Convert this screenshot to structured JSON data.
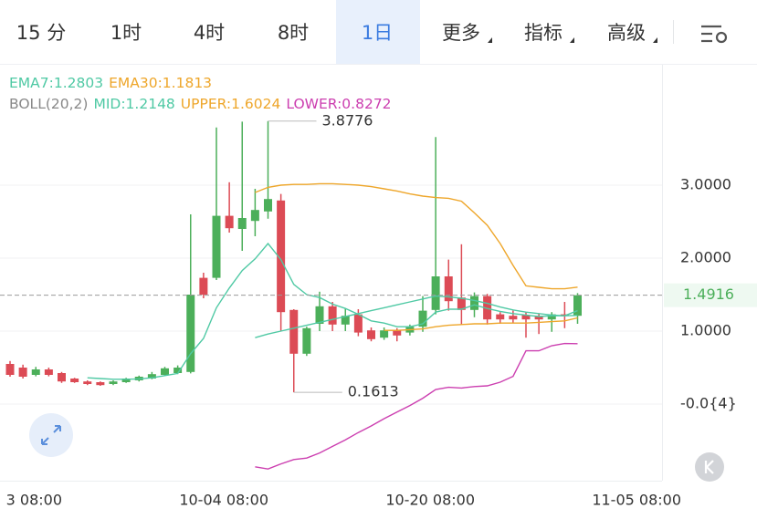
{
  "tabs": [
    "15 分",
    "1时",
    "4时",
    "8时",
    "1日",
    "更多",
    "指标",
    "高级"
  ],
  "active_tab": "1日",
  "chart_data": {
    "type": "candlestick",
    "x": [
      "09-18 08:00",
      "09-19 08:00",
      "09-20 08:00",
      "09-21 08:00",
      "09-22 08:00",
      "09-23 08:00",
      "09-24 08:00",
      "09-25 08:00",
      "09-26 08:00",
      "09-27 08:00",
      "09-28 08:00",
      "09-29 08:00",
      "09-30 08:00",
      "10-01 08:00",
      "10-02 08:00",
      "10-03 08:00",
      "10-04 08:00",
      "10-05 08:00",
      "10-06 08:00",
      "10-07 08:00",
      "10-08 08:00",
      "10-09 08:00",
      "10-10 08:00",
      "10-11 08:00",
      "10-12 08:00",
      "10-13 08:00",
      "10-14 08:00",
      "10-15 08:00",
      "10-16 08:00",
      "10-17 08:00",
      "10-18 08:00",
      "10-19 08:00",
      "10-20 08:00",
      "10-21 08:00",
      "10-22 08:00",
      "10-23 08:00",
      "10-24 08:00",
      "10-25 08:00",
      "10-26 08:00",
      "10-27 08:00",
      "10-28 08:00",
      "10-29 08:00",
      "10-30 08:00",
      "10-31 08:00",
      "11-01 08:00"
    ],
    "open": [
      0.55,
      0.5,
      0.4,
      0.475,
      0.425,
      0.35,
      0.31,
      0.3,
      0.275,
      0.3,
      0.325,
      0.35,
      0.4,
      0.425,
      0.44,
      1.73,
      1.73,
      2.58,
      2.4,
      2.51,
      2.64,
      2.79,
      1.29,
      0.69,
      1.1,
      1.34,
      1.09,
      1.23,
      1.01,
      0.91,
      1.01,
      0.98,
      1.06,
      1.29,
      1.75,
      1.46,
      1.29,
      1.48,
      1.23,
      1.21,
      1.22,
      1.2,
      1.16,
      1.23,
      1.21
    ],
    "high": [
      0.59,
      0.54,
      0.51,
      0.5,
      0.44,
      0.36,
      0.325,
      0.31,
      0.325,
      0.36,
      0.39,
      0.44,
      0.51,
      0.53,
      2.6,
      1.8,
      3.79,
      3.04,
      3.87,
      2.95,
      3.8776,
      2.88,
      1.3,
      1.06,
      1.54,
      1.4,
      1.31,
      1.3,
      1.05,
      1.05,
      1.04,
      1.09,
      1.48,
      3.66,
      1.98,
      2.19,
      1.53,
      1.51,
      1.26,
      1.28,
      1.26,
      1.24,
      1.26,
      1.4,
      1.52
    ],
    "low": [
      0.375,
      0.35,
      0.38,
      0.38,
      0.29,
      0.29,
      0.26,
      0.25,
      0.26,
      0.29,
      0.31,
      0.34,
      0.39,
      0.41,
      0.42,
      1.45,
      1.7,
      2.35,
      2.1,
      2.3,
      2.54,
      1.0,
      0.1613,
      0.66,
      1.0,
      1.0,
      1.0,
      0.93,
      0.86,
      0.88,
      0.86,
      0.94,
      0.99,
      1.23,
      1.28,
      1.09,
      1.19,
      1.09,
      1.1,
      1.11,
      0.91,
      0.96,
      0.99,
      1.04,
      1.1
    ],
    "close": [
      0.4,
      0.375,
      0.475,
      0.4,
      0.31,
      0.3,
      0.275,
      0.26,
      0.31,
      0.35,
      0.375,
      0.41,
      0.49,
      0.5,
      1.5,
      1.5,
      2.58,
      2.41,
      2.55,
      2.66,
      2.81,
      1.26,
      0.69,
      1.04,
      1.34,
      1.09,
      1.21,
      0.98,
      0.89,
      1.01,
      0.94,
      1.06,
      1.28,
      1.75,
      1.41,
      1.29,
      1.48,
      1.16,
      1.16,
      1.16,
      1.16,
      1.16,
      1.23,
      1.21,
      1.4916
    ],
    "up_color": "#4caf5a",
    "down_color": "#dc4b55",
    "series": [
      {
        "name": "EMA7",
        "label": "EMA7:1.2803",
        "color": "#4fc9a4",
        "values": [
          null,
          null,
          null,
          null,
          null,
          null,
          0.36,
          0.35,
          0.34,
          0.34,
          0.345,
          0.36,
          0.39,
          0.42,
          0.69,
          0.9,
          1.32,
          1.59,
          1.83,
          1.99,
          2.2,
          1.98,
          1.64,
          1.5,
          1.46,
          1.37,
          1.31,
          1.23,
          1.14,
          1.11,
          1.06,
          1.06,
          1.1,
          1.26,
          1.3,
          1.3,
          1.36,
          1.31,
          1.27,
          1.24,
          1.22,
          1.2,
          1.21,
          1.21,
          1.2803
        ]
      },
      {
        "name": "EMA30",
        "label": "EMA30:1.1813",
        "color": "#eea62a",
        "values": [
          null,
          null,
          null,
          null,
          null,
          null,
          null,
          null,
          null,
          null,
          null,
          null,
          null,
          null,
          null,
          null,
          null,
          null,
          null,
          null,
          null,
          null,
          null,
          null,
          null,
          null,
          null,
          null,
          null,
          1.01,
          1.01,
          1.02,
          1.03,
          1.06,
          1.08,
          1.09,
          1.1,
          1.1,
          1.11,
          1.11,
          1.11,
          1.12,
          1.13,
          1.14,
          1.1813
        ]
      },
      {
        "name": "MID",
        "label": "MID:1.2148",
        "color": "#4fc9a4",
        "values": [
          null,
          null,
          null,
          null,
          null,
          null,
          null,
          null,
          null,
          null,
          null,
          null,
          null,
          null,
          null,
          null,
          null,
          null,
          null,
          0.91,
          0.96,
          1.0,
          1.04,
          1.08,
          1.12,
          1.16,
          1.2,
          1.24,
          1.28,
          1.32,
          1.36,
          1.4,
          1.44,
          1.48,
          1.47,
          1.45,
          1.42,
          1.38,
          1.33,
          1.29,
          1.26,
          1.24,
          1.22,
          1.21,
          1.2148
        ]
      },
      {
        "name": "UPPER",
        "label": "UPPER:1.6024",
        "color": "#eea62a",
        "values": [
          null,
          null,
          null,
          null,
          null,
          null,
          null,
          null,
          null,
          null,
          null,
          null,
          null,
          null,
          null,
          null,
          null,
          null,
          null,
          2.9,
          2.97,
          3.0,
          3.01,
          3.01,
          3.02,
          3.02,
          3.01,
          3.0,
          2.98,
          2.95,
          2.92,
          2.88,
          2.85,
          2.83,
          2.82,
          2.78,
          2.62,
          2.45,
          2.2,
          1.9,
          1.62,
          1.6,
          1.58,
          1.58,
          1.6024
        ]
      },
      {
        "name": "LOWER",
        "label": "LOWER:0.8272",
        "color": "#cc3fb0",
        "values": [
          null,
          null,
          null,
          null,
          null,
          null,
          null,
          null,
          null,
          null,
          null,
          null,
          null,
          null,
          null,
          null,
          null,
          null,
          null,
          -0.86,
          -0.89,
          -0.82,
          -0.76,
          -0.74,
          -0.67,
          -0.58,
          -0.49,
          -0.39,
          -0.3,
          -0.2,
          -0.11,
          -0.02,
          0.08,
          0.2,
          0.23,
          0.22,
          0.24,
          0.25,
          0.3,
          0.38,
          0.73,
          0.73,
          0.8,
          0.83,
          0.8272
        ]
      }
    ],
    "boll_label": "BOLL(20,2)",
    "ylim": [
      -1.05,
      4.6
    ],
    "yticks": [
      {
        "value": 0,
        "label": "-0.0{4}"
      },
      {
        "value": 1,
        "label": "1.0000"
      },
      {
        "value": 2,
        "label": "2.0000"
      },
      {
        "value": 3,
        "label": "3.0000"
      }
    ],
    "xticks": [
      {
        "value": "09-18 08:00",
        "label": "3 08:00"
      },
      "10-04 08:00",
      "10-20 08:00",
      "11-05 08:00"
    ],
    "grid": true,
    "last_price": {
      "value": 1.4916,
      "label": "1.4916"
    },
    "annotations": [
      {
        "text": "3.8776",
        "x": "10-08 08:00",
        "value": 3.8776
      },
      {
        "text": "0.1613",
        "x": "10-10 08:00",
        "value": 0.1613
      }
    ]
  }
}
